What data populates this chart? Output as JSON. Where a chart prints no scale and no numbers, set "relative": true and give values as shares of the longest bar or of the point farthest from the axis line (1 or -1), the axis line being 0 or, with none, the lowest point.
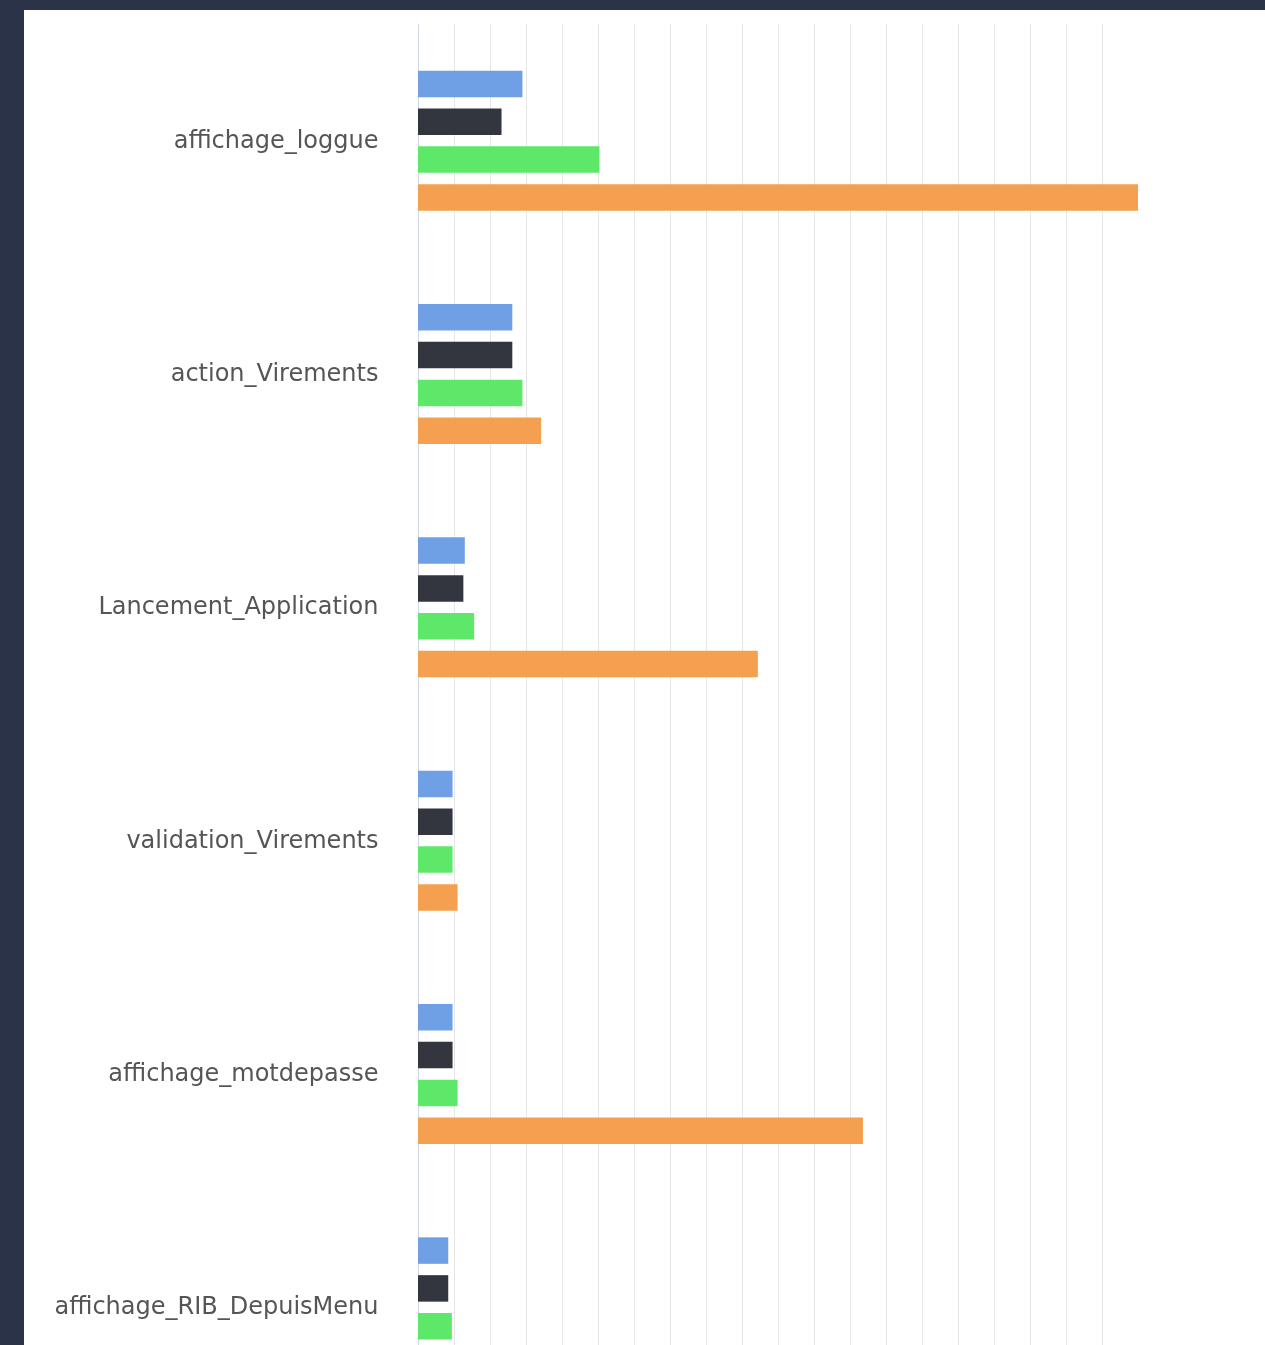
{
  "chart_data": {
    "type": "bar",
    "orientation": "horizontal",
    "relative": true,
    "grid": "x",
    "categories": [
      "affichage_loggue",
      "action_Virements",
      "Lancement_Application",
      "validation_Virements",
      "affichage_motdepasse",
      "affichage_RIB_DepuisMenu"
    ],
    "series": [
      {
        "color": "#6fa0e6",
        "values": [
          0.145,
          0.131,
          0.065,
          0.048,
          0.048,
          0.042
        ]
      },
      {
        "color": "#33363f",
        "values": [
          0.116,
          0.131,
          0.063,
          0.048,
          0.048,
          0.042
        ]
      },
      {
        "color": "#5ee86a",
        "values": [
          0.252,
          0.145,
          0.078,
          0.048,
          0.055,
          0.047
        ]
      },
      {
        "color": "#f5a050",
        "values": [
          1,
          0.171,
          0.472,
          0.055,
          0.618,
          null
        ]
      }
    ]
  }
}
